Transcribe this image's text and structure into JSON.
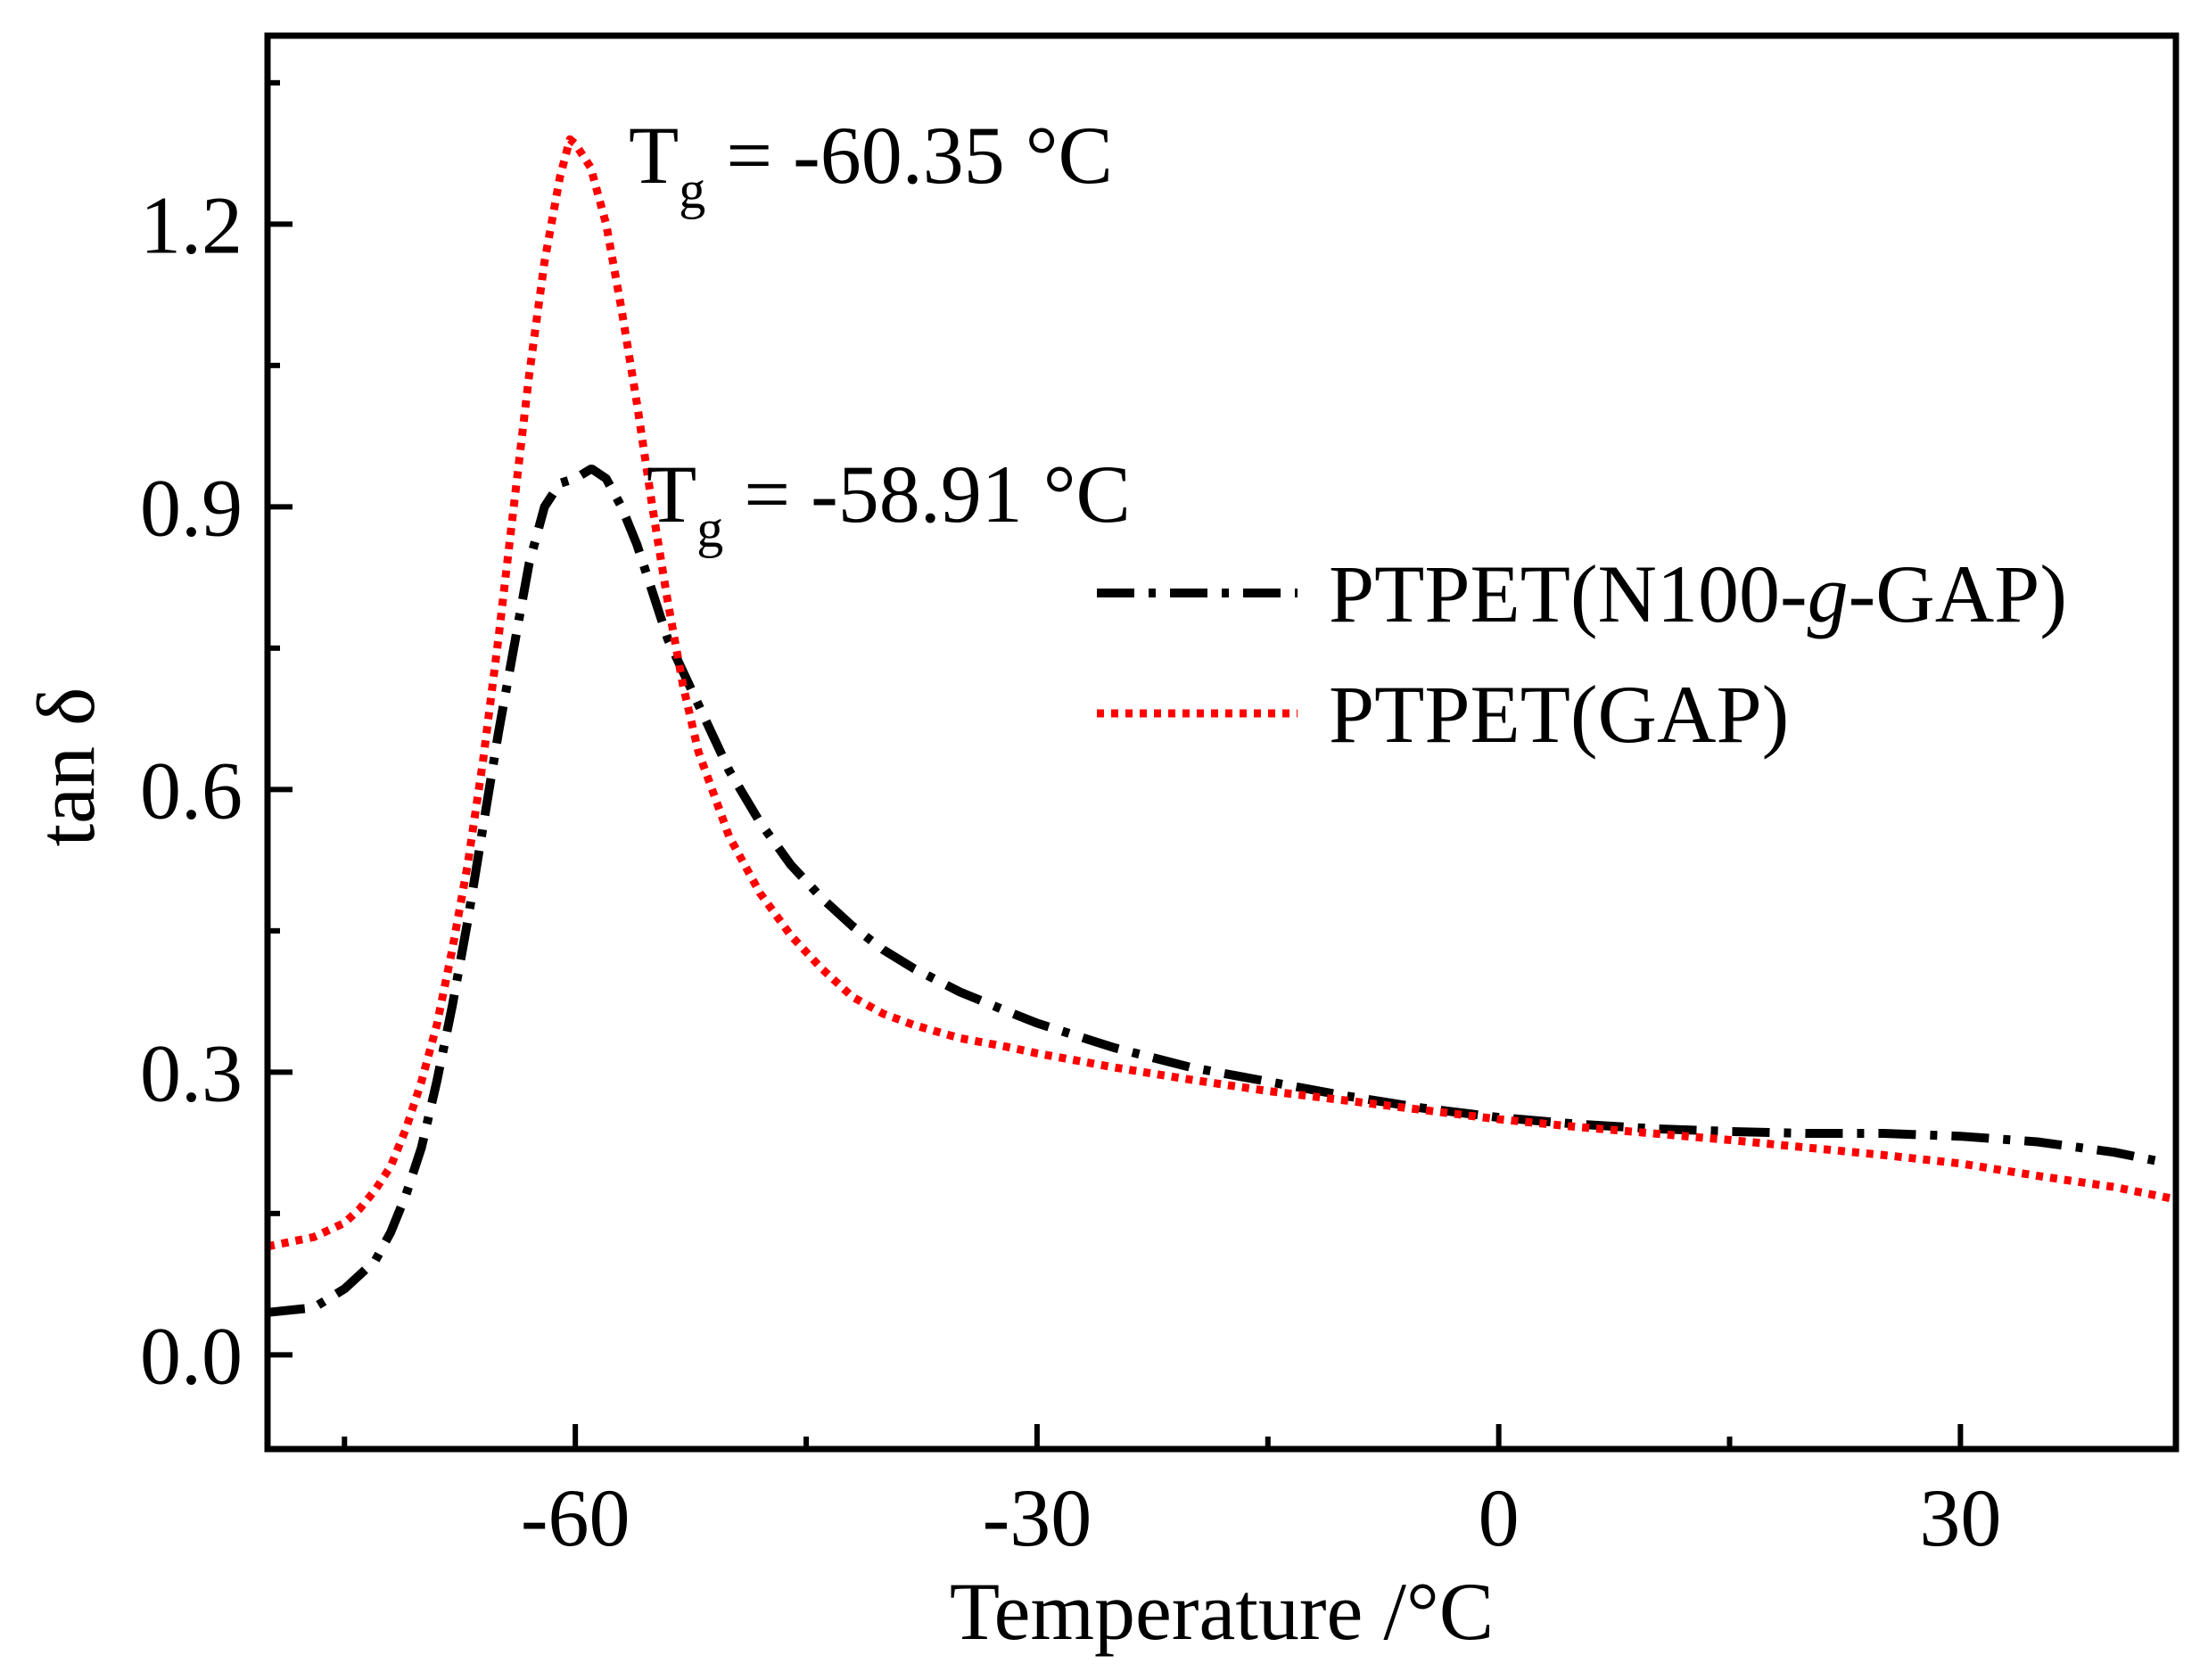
{
  "chart_data": {
    "type": "line",
    "title": "",
    "xlabel": "Temperature /°C",
    "ylabel": "tan δ",
    "xlim": [
      -80,
      44
    ],
    "ylim": [
      -0.1,
      1.4
    ],
    "xticks": [
      -60,
      -30,
      0,
      30
    ],
    "xtick_labels": [
      "-60",
      "-30",
      "0",
      "30"
    ],
    "xminor_ticks": [
      -75,
      -45,
      -15,
      15
    ],
    "yticks": [
      0.0,
      0.3,
      0.6,
      0.9,
      1.2
    ],
    "ytick_labels": [
      "0.0",
      "0.3",
      "0.6",
      "0.9",
      "1.2"
    ],
    "yminor_ticks": [
      0.15,
      0.45,
      0.75,
      1.05,
      1.35
    ],
    "grid": false,
    "legend_position": "right",
    "series": [
      {
        "name": "PTPET(N100-g-GAP)",
        "name_parts": [
          "PTPET(N100-",
          "g",
          "-GAP)"
        ],
        "color": "#000000",
        "style": "dash-dot",
        "x": [
          -80,
          -77,
          -75,
          -73,
          -72,
          -71,
          -70,
          -69,
          -68,
          -67,
          -66,
          -65,
          -64,
          -63,
          -62,
          -61,
          -60,
          -59,
          -58.9,
          -58,
          -57,
          -56,
          -55,
          -54,
          -52,
          -50,
          -48,
          -46,
          -44,
          -42,
          -40,
          -38,
          -35,
          -32,
          -30,
          -25,
          -20,
          -15,
          -10,
          -5,
          0,
          5,
          10,
          15,
          20,
          25,
          30,
          35,
          40,
          43
        ],
        "y": [
          0.045,
          0.05,
          0.07,
          0.1,
          0.13,
          0.17,
          0.22,
          0.29,
          0.37,
          0.46,
          0.56,
          0.66,
          0.75,
          0.84,
          0.9,
          0.925,
          0.93,
          0.94,
          0.94,
          0.93,
          0.9,
          0.86,
          0.81,
          0.76,
          0.69,
          0.62,
          0.565,
          0.52,
          0.485,
          0.455,
          0.43,
          0.41,
          0.385,
          0.365,
          0.352,
          0.326,
          0.305,
          0.29,
          0.275,
          0.262,
          0.252,
          0.245,
          0.24,
          0.237,
          0.235,
          0.235,
          0.232,
          0.226,
          0.215,
          0.205
        ]
      },
      {
        "name": "PTPET(GAP)",
        "color": "#ff0000",
        "style": "dotted",
        "x": [
          -80,
          -77,
          -75,
          -74,
          -73,
          -72,
          -71,
          -70,
          -69,
          -68,
          -67,
          -66,
          -65,
          -64,
          -63,
          -62,
          -61,
          -60.35,
          -60,
          -59,
          -58,
          -57,
          -56,
          -55,
          -54,
          -53,
          -52,
          -50,
          -48,
          -46,
          -44,
          -42,
          -40,
          -38,
          -35,
          -32,
          -30,
          -25,
          -20,
          -15,
          -10,
          -5,
          0,
          5,
          10,
          15,
          20,
          25,
          30,
          35,
          40,
          44
        ],
        "y": [
          0.115,
          0.125,
          0.14,
          0.155,
          0.175,
          0.2,
          0.24,
          0.29,
          0.35,
          0.43,
          0.52,
          0.63,
          0.76,
          0.9,
          1.04,
          1.16,
          1.25,
          1.29,
          1.285,
          1.26,
          1.2,
          1.11,
          1.01,
          0.9,
          0.8,
          0.71,
          0.64,
          0.55,
          0.49,
          0.445,
          0.41,
          0.38,
          0.362,
          0.35,
          0.336,
          0.327,
          0.32,
          0.305,
          0.292,
          0.28,
          0.27,
          0.26,
          0.25,
          0.242,
          0.235,
          0.228,
          0.22,
          0.212,
          0.203,
          0.19,
          0.178,
          0.165
        ]
      }
    ],
    "annotations": [
      {
        "base": "T",
        "sub": "g",
        "text": " = -60.35 °C",
        "x": -55,
        "y": 1.26
      },
      {
        "base": "T",
        "sub": "g",
        "text": " = -58.91 °C",
        "x": -54,
        "y": 0.9
      }
    ]
  }
}
